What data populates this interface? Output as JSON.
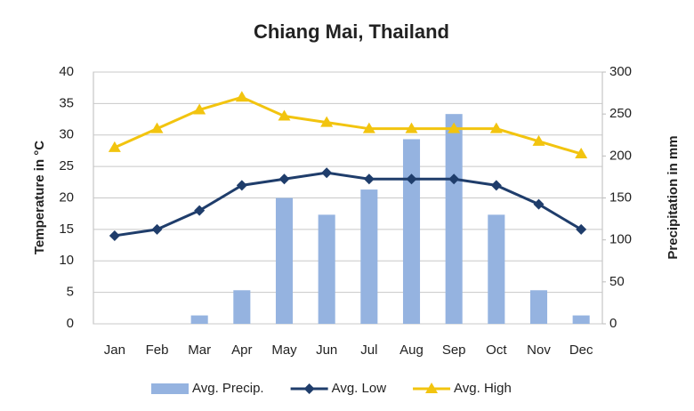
{
  "chart_data": {
    "type": "combo",
    "title": "Chiang Mai, Thailand",
    "y_label": "Temperature in °C",
    "y2_label": "Precipitation in mm",
    "categories": [
      "Jan",
      "Feb",
      "Mar",
      "Apr",
      "May",
      "Jun",
      "Jul",
      "Aug",
      "Sep",
      "Oct",
      "Nov",
      "Dec"
    ],
    "series": [
      {
        "name": "Avg. Precip.",
        "type": "bar",
        "axis": "y2",
        "color": "#95b3e0",
        "values": [
          0,
          0,
          10,
          40,
          150,
          130,
          160,
          220,
          250,
          130,
          40,
          10
        ]
      },
      {
        "name": "Avg. Low",
        "type": "line",
        "marker": "diamond",
        "color": "#1f3d6b",
        "values": [
          14,
          15,
          18,
          22,
          23,
          24,
          23,
          23,
          23,
          22,
          19,
          15
        ]
      },
      {
        "name": "Avg. High",
        "type": "line",
        "marker": "triangle",
        "color": "#f2c40f",
        "values": [
          28,
          31,
          34,
          36,
          33,
          32,
          31,
          31,
          31,
          31,
          29,
          27
        ]
      }
    ],
    "ylim": [
      0,
      40
    ],
    "yticks": [
      0,
      5,
      10,
      15,
      20,
      25,
      30,
      35,
      40
    ],
    "y2lim": [
      0,
      300
    ],
    "y2ticks": [
      0,
      50,
      100,
      150,
      200,
      250,
      300
    ],
    "grid": true,
    "legend": "bottom"
  }
}
